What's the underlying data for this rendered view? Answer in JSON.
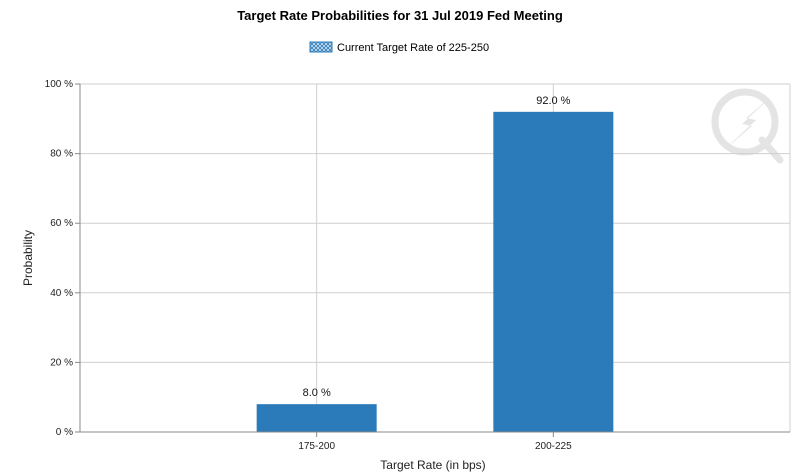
{
  "chart_data": {
    "type": "bar",
    "title": "Target Rate Probabilities for 31 Jul 2019 Fed Meeting",
    "legend": "Current Target Rate of 225-250",
    "categories": [
      "175-200",
      "200-225"
    ],
    "values": [
      8.0,
      92.0
    ],
    "value_labels": [
      "8.0 %",
      "92.0 %"
    ],
    "xlabel": "Target Rate (in bps)",
    "ylabel": "Probability",
    "ylim": [
      0,
      100
    ],
    "yticks": [
      0,
      20,
      40,
      60,
      80,
      100
    ],
    "ytick_labels": [
      "0 %",
      "20 %",
      "40 %",
      "60 %",
      "80 %",
      "100 %"
    ],
    "grid": true,
    "legend_position": "top-center",
    "colors": {
      "bar": "#2b7bba",
      "grid": "#cfcfcf",
      "axis": "#888888"
    }
  }
}
